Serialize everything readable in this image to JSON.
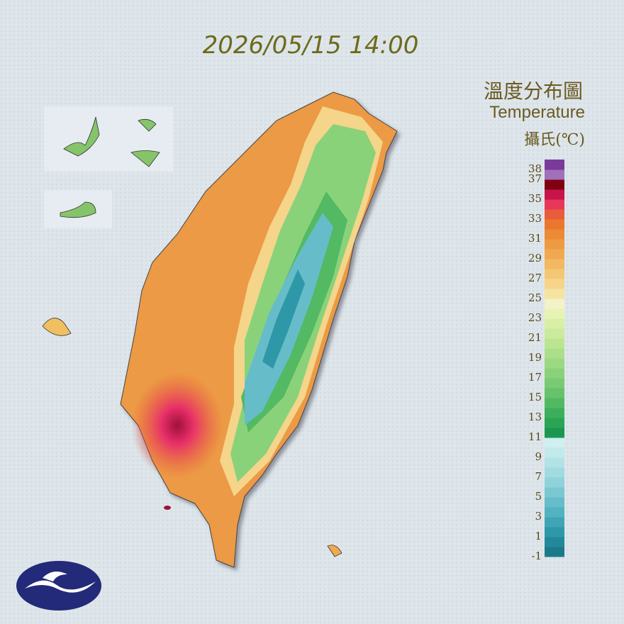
{
  "title": "2026/05/15 14:00",
  "legend": {
    "title": "溫度分布圖",
    "subtitle": "Temperature",
    "unit": "攝氏(℃)",
    "lim": [
      -1,
      39
    ],
    "ticks": [
      38,
      37,
      35,
      33,
      31,
      29,
      27,
      25,
      23,
      21,
      19,
      17,
      15,
      13,
      11,
      9,
      7,
      5,
      3,
      1,
      -1
    ],
    "colors": [
      "#1b7a8a",
      "#23899a",
      "#2f98a8",
      "#3fa5b5",
      "#52b2c0",
      "#66bdc9",
      "#7bc8d2",
      "#8fd2da",
      "#a1dbe1",
      "#b2e2e6",
      "#c2e9eb",
      "#cfeff0",
      "#1a9850",
      "#2ba456",
      "#3daf5c",
      "#52b963",
      "#66c26b",
      "#79ca72",
      "#8ad27a",
      "#9bd982",
      "#acdf8a",
      "#bce592",
      "#cbea9b",
      "#d8efa5",
      "#e6f3b5",
      "#f3f3c8",
      "#f7e3a0",
      "#f6d58a",
      "#f4c774",
      "#f2b862",
      "#f0a950",
      "#ee9a42",
      "#ec8a35",
      "#e9782c",
      "#e85c3a",
      "#e8385a",
      "#c8144a",
      "#800010",
      "#a070b8",
      "#7a3a9a"
    ]
  }
}
